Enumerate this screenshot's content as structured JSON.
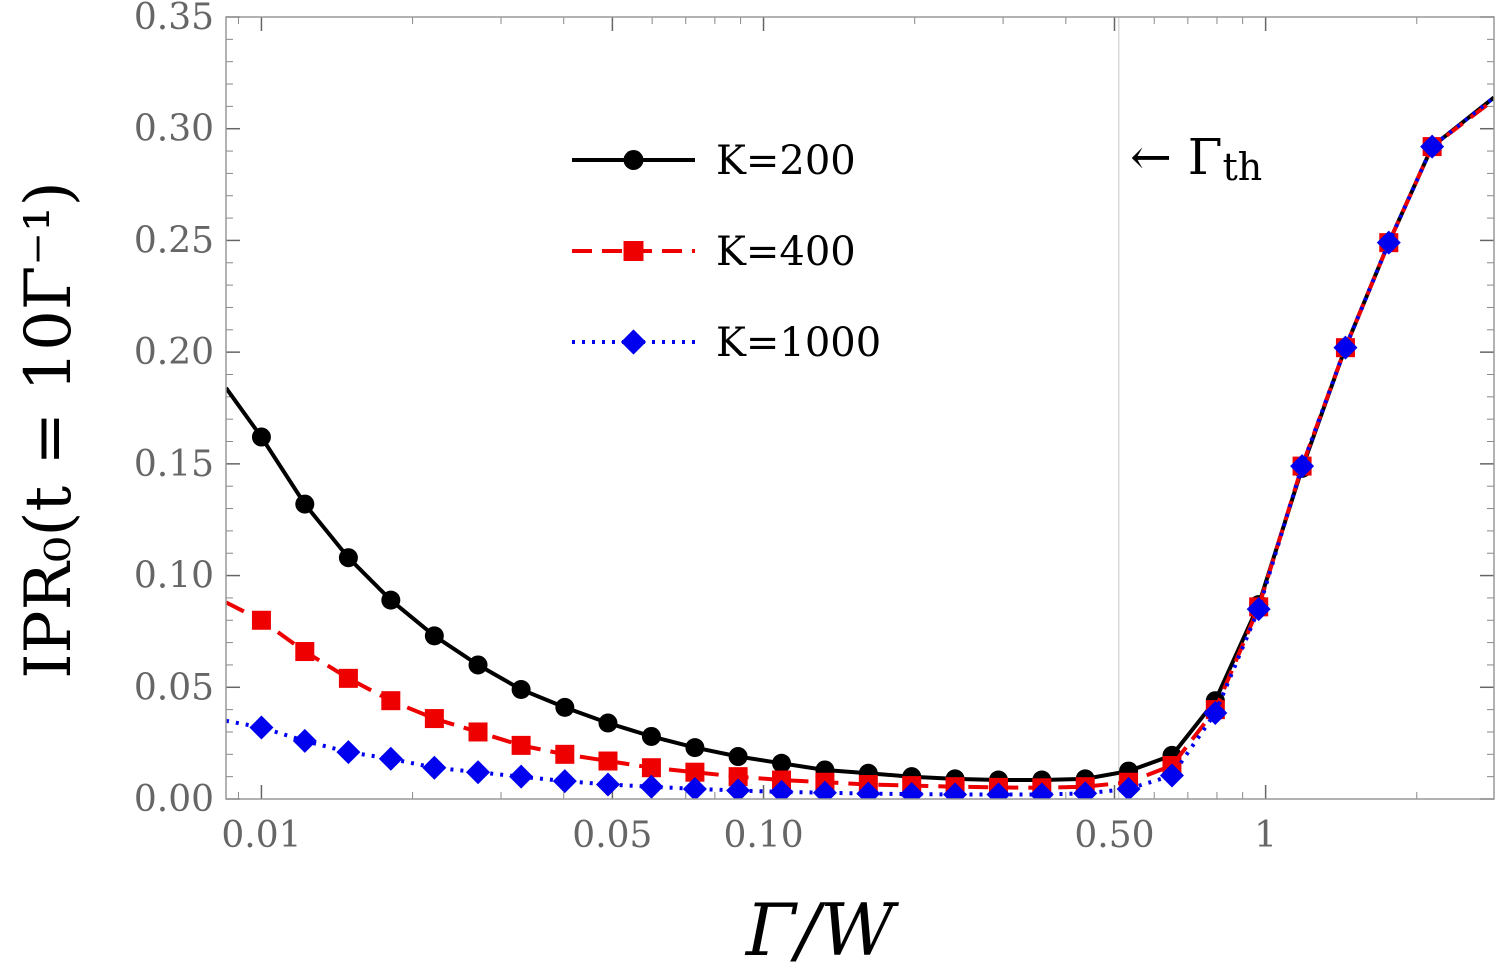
{
  "chart_data": {
    "type": "line",
    "xscale": "log",
    "xlim": [
      0.0085,
      2.85
    ],
    "ylim": [
      0,
      0.35
    ],
    "xlabel": "Γ/W",
    "ylabel": "IPR₀(t = 10Γ⁻¹)",
    "x_ticks": [
      {
        "value": 0.01,
        "label": "0.01"
      },
      {
        "value": 0.05,
        "label": "0.05"
      },
      {
        "value": 0.1,
        "label": "0.10"
      },
      {
        "value": 0.5,
        "label": "0.50"
      },
      {
        "value": 1,
        "label": "1"
      }
    ],
    "y_ticks": [
      {
        "value": 0.0,
        "label": "0.00"
      },
      {
        "value": 0.05,
        "label": "0.05"
      },
      {
        "value": 0.1,
        "label": "0.10"
      },
      {
        "value": 0.15,
        "label": "0.15"
      },
      {
        "value": 0.2,
        "label": "0.20"
      },
      {
        "value": 0.25,
        "label": "0.25"
      },
      {
        "value": 0.3,
        "label": "0.30"
      },
      {
        "value": 0.35,
        "label": "0.35"
      }
    ],
    "threshold": {
      "x": 0.51,
      "label": "← Γ",
      "label_sub": "th"
    },
    "legend": {
      "position": "top-center"
    },
    "x": [
      0.0085,
      0.01,
      0.0122,
      0.0149,
      0.0181,
      0.0221,
      0.027,
      0.0329,
      0.0402,
      0.049,
      0.0598,
      0.073,
      0.089,
      0.1086,
      0.1325,
      0.1617,
      0.1973,
      0.2407,
      0.2937,
      0.3583,
      0.4372,
      0.5334,
      0.6508,
      0.794,
      0.9687,
      1.182,
      1.442,
      1.759,
      2.146,
      2.85
    ],
    "series": [
      {
        "name": "K=200",
        "color": "#000000",
        "dash": "solid",
        "marker": "circle",
        "values": [
          0.184,
          0.162,
          0.132,
          0.108,
          0.089,
          0.073,
          0.06,
          0.049,
          0.041,
          0.034,
          0.028,
          0.023,
          0.019,
          0.016,
          0.013,
          0.0115,
          0.01,
          0.009,
          0.0085,
          0.0085,
          0.009,
          0.0125,
          0.0195,
          0.044,
          0.087,
          0.148,
          0.202,
          0.249,
          0.292,
          0.314
        ]
      },
      {
        "name": "K=400",
        "color": "#ee0000",
        "dash": "dashed",
        "marker": "square",
        "values": [
          0.088,
          0.08,
          0.066,
          0.054,
          0.044,
          0.036,
          0.03,
          0.024,
          0.02,
          0.017,
          0.014,
          0.012,
          0.01,
          0.0085,
          0.0075,
          0.0065,
          0.006,
          0.0055,
          0.0052,
          0.005,
          0.0055,
          0.0075,
          0.015,
          0.04,
          0.086,
          0.149,
          0.202,
          0.249,
          0.292,
          0.313
        ]
      },
      {
        "name": "K=1000",
        "color": "#0000ee",
        "dash": "dotted",
        "marker": "diamond",
        "values": [
          0.035,
          0.032,
          0.026,
          0.021,
          0.018,
          0.014,
          0.012,
          0.01,
          0.008,
          0.0065,
          0.0055,
          0.0045,
          0.0038,
          0.0032,
          0.0028,
          0.0024,
          0.0022,
          0.002,
          0.002,
          0.002,
          0.0025,
          0.0045,
          0.0105,
          0.0385,
          0.085,
          0.149,
          0.202,
          0.249,
          0.292,
          0.314
        ]
      }
    ]
  }
}
